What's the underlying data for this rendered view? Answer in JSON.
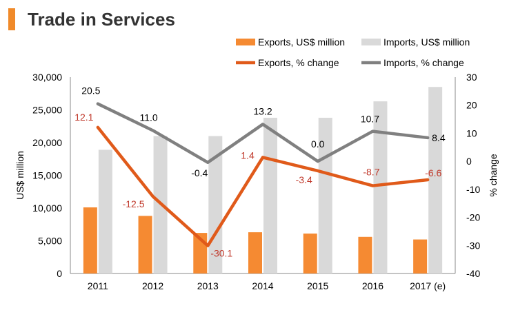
{
  "title": "Trade in Services",
  "colors": {
    "title_accent": "#f08a2a",
    "exports_bar": "#f58a32",
    "imports_bar": "#d9d9d9",
    "exports_line": "#e05a1a",
    "imports_line": "#808080",
    "exports_label": "#c0392b",
    "imports_label": "#000000"
  },
  "legend": {
    "exports_bar": "Exports, US$ million",
    "imports_bar": "Imports, US$ million",
    "exports_line": "Exports, % change",
    "imports_line": "Imports, % change"
  },
  "chart_data": {
    "type": "bar+line",
    "title": "Trade in Services",
    "categories": [
      "2011",
      "2012",
      "2013",
      "2014",
      "2015",
      "2016",
      "2017 (e)"
    ],
    "ylabel": "US$ million",
    "y2label": "% change",
    "ylim": [
      0,
      30000
    ],
    "y2lim": [
      -40,
      30
    ],
    "yticks": [
      "0",
      "5,000",
      "10,000",
      "15,000",
      "20,000",
      "25,000",
      "30,000"
    ],
    "y2ticks": [
      "-40",
      "-30",
      "-20",
      "-10",
      "0",
      "10",
      "20",
      "30"
    ],
    "legend_position": "top-right",
    "grid": false,
    "series": [
      {
        "name": "Exports, US$ million",
        "kind": "bar",
        "axis": "left",
        "values": [
          10100,
          8800,
          6200,
          6300,
          6100,
          5600,
          5200
        ]
      },
      {
        "name": "Imports, US$ million",
        "kind": "bar",
        "axis": "left",
        "values": [
          18900,
          21000,
          21000,
          23800,
          23800,
          26300,
          28500
        ]
      },
      {
        "name": "Exports, % change",
        "kind": "line",
        "axis": "right",
        "values": [
          12.1,
          -12.5,
          -30.1,
          1.4,
          -3.4,
          -8.7,
          -6.6
        ],
        "labels": [
          "12.1",
          "-12.5",
          "-30.1",
          "1.4",
          "-3.4",
          "-8.7",
          "-6.6"
        ]
      },
      {
        "name": "Imports, % change",
        "kind": "line",
        "axis": "right",
        "values": [
          20.5,
          11.0,
          -0.4,
          13.2,
          0.0,
          10.7,
          8.4
        ],
        "labels": [
          "20.5",
          "11.0",
          "-0.4",
          "13.2",
          "0.0",
          "10.7",
          "8.4"
        ]
      }
    ]
  }
}
